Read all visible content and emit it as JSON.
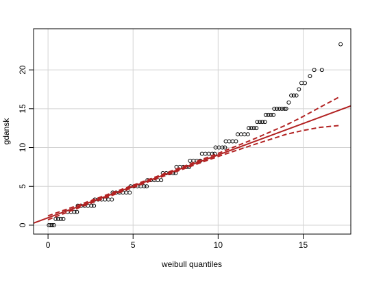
{
  "chart_data": {
    "type": "scatter",
    "xlabel": "weibull quantiles",
    "ylabel": "gdansk",
    "x": [
      0.05,
      0.15,
      0.25,
      0.35,
      0.45,
      0.6,
      0.75,
      0.9,
      0.95,
      1.15,
      1.35,
      1.55,
      1.7,
      1.75,
      1.95,
      2.15,
      2.35,
      2.55,
      2.7,
      2.75,
      2.95,
      3.15,
      3.35,
      3.55,
      3.75,
      3.8,
      4.0,
      4.2,
      4.4,
      4.6,
      4.8,
      4.85,
      5.05,
      5.25,
      5.45,
      5.65,
      5.8,
      5.85,
      6.05,
      6.25,
      6.45,
      6.65,
      6.75,
      6.95,
      7.15,
      7.35,
      7.5,
      7.55,
      7.75,
      7.95,
      8.15,
      8.3,
      8.35,
      8.55,
      8.75,
      8.95,
      9.05,
      9.25,
      9.45,
      9.65,
      9.8,
      9.85,
      10.05,
      10.25,
      10.4,
      10.45,
      10.65,
      10.85,
      11.05,
      11.15,
      11.35,
      11.55,
      11.75,
      11.8,
      11.95,
      12.1,
      12.25,
      12.3,
      12.45,
      12.6,
      12.75,
      12.8,
      12.95,
      13.1,
      13.25,
      13.3,
      13.45,
      13.6,
      13.75,
      13.9,
      14.0,
      14.15,
      14.3,
      14.45,
      14.6,
      14.75,
      14.9,
      15.1,
      15.4,
      15.65,
      16.1,
      17.2
    ],
    "values": [
      0,
      0,
      0,
      0,
      0.8,
      0.8,
      0.8,
      0.8,
      1.7,
      1.7,
      1.7,
      1.7,
      1.7,
      2.5,
      2.5,
      2.5,
      2.5,
      2.5,
      2.5,
      3.3,
      3.3,
      3.3,
      3.3,
      3.3,
      3.3,
      4.2,
      4.2,
      4.2,
      4.2,
      4.2,
      4.2,
      5,
      5,
      5,
      5,
      5,
      5,
      5.8,
      5.8,
      5.8,
      5.8,
      5.8,
      6.7,
      6.7,
      6.7,
      6.7,
      6.7,
      7.5,
      7.5,
      7.5,
      7.5,
      7.5,
      8.3,
      8.3,
      8.3,
      8.3,
      9.2,
      9.2,
      9.2,
      9.2,
      9.2,
      10,
      10,
      10,
      10,
      10.8,
      10.8,
      10.8,
      10.8,
      11.7,
      11.7,
      11.7,
      11.7,
      12.5,
      12.5,
      12.5,
      12.5,
      13.3,
      13.3,
      13.3,
      13.3,
      14.2,
      14.2,
      14.2,
      14.2,
      15,
      15,
      15,
      15,
      15,
      15,
      15.8,
      16.7,
      16.7,
      16.7,
      17.5,
      18.3,
      18.3,
      19.2,
      20,
      20,
      23.3
    ],
    "point_color": "#000000",
    "reference_line": {
      "intercept": 0.95,
      "slope": 0.81,
      "color": "#b22222"
    },
    "band": {
      "x": [
        0,
        2,
        4,
        6,
        8,
        10,
        12,
        14,
        15,
        16,
        17.2
      ],
      "upper": [
        1.2,
        2.75,
        4.35,
        5.95,
        7.6,
        9.25,
        11.0,
        12.9,
        14.0,
        15.2,
        16.6
      ],
      "lower": [
        0.7,
        2.4,
        4.03,
        5.67,
        7.27,
        8.85,
        10.3,
        11.7,
        12.2,
        12.6,
        12.85
      ],
      "color": "#b22222"
    },
    "xlim": [
      -0.85,
      17.8
    ],
    "ylim": [
      -1.15,
      25.3
    ],
    "xticks": [
      0,
      5,
      10,
      15
    ],
    "yticks": [
      0,
      5,
      10,
      15,
      20
    ],
    "grid": true
  }
}
